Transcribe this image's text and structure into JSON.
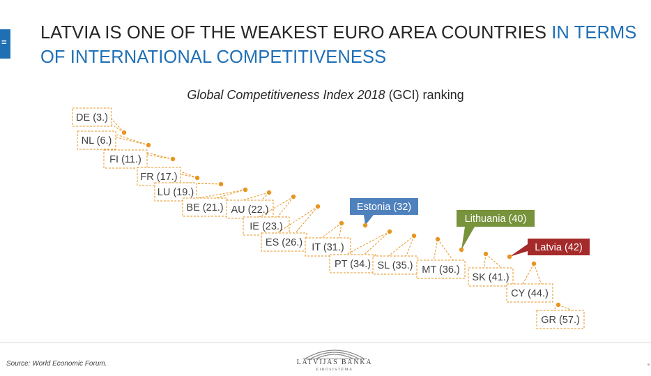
{
  "header": {
    "title_main": "LATVIA IS ONE OF THE WEAKEST EURO AREA COUNTRIES ",
    "title_highlight": "IN TERMS OF INTERNATIONAL COMPETITIVENESS",
    "side_icon": "="
  },
  "chart_title": {
    "italic": "Global Competitiveness Index 2018",
    "normal": " (GCI) ranking"
  },
  "colors": {
    "accent": "#1f6fb5",
    "marker": "#e8951f",
    "estonia": "#4f81bd",
    "lithuania": "#77933c",
    "latvia": "#a52a2a"
  },
  "chart_data": {
    "type": "scatter",
    "title": "Global Competitiveness Index 2018 (GCI) ranking",
    "series": [
      {
        "points": [
          {
            "country": "DE",
            "rank": 3,
            "label": "DE (3.)"
          },
          {
            "country": "NL",
            "rank": 6,
            "label": "NL (6.)"
          },
          {
            "country": "FI",
            "rank": 11,
            "label": "FI (11.)"
          },
          {
            "country": "FR",
            "rank": 17,
            "label": "FR (17.)"
          },
          {
            "country": "LU",
            "rank": 19,
            "label": "LU (19.)"
          },
          {
            "country": "BE",
            "rank": 21,
            "label": "BE (21.)"
          },
          {
            "country": "AU",
            "rank": 22,
            "label": "AU (22.)"
          },
          {
            "country": "IE",
            "rank": 23,
            "label": "IE (23.)"
          },
          {
            "country": "ES",
            "rank": 26,
            "label": "ES (26.)"
          },
          {
            "country": "IT",
            "rank": 31,
            "label": "IT (31.)"
          },
          {
            "country": "Estonia",
            "rank": 32,
            "label": "Estonia (32)",
            "highlight": "estonia"
          },
          {
            "country": "PT",
            "rank": 34,
            "label": "PT (34.)"
          },
          {
            "country": "SL",
            "rank": 35,
            "label": "SL (35.)"
          },
          {
            "country": "MT",
            "rank": 36,
            "label": "MT (36.)"
          },
          {
            "country": "Lithuania",
            "rank": 40,
            "label": "Lithuania (40)",
            "highlight": "lithuania"
          },
          {
            "country": "SK",
            "rank": 41,
            "label": "SK (41.)"
          },
          {
            "country": "Latvia",
            "rank": 42,
            "label": "Latvia (42)",
            "highlight": "latvia"
          },
          {
            "country": "CY",
            "rank": 44,
            "label": "CY (44.)"
          },
          {
            "country": "GR",
            "rank": 57,
            "label": "GR (57.)"
          }
        ]
      }
    ]
  },
  "footer": {
    "source": "Source: World Economic Forum.",
    "logo_name": "LATVIJAS BANKA",
    "logo_sub": "EIROSISTĒMA"
  }
}
